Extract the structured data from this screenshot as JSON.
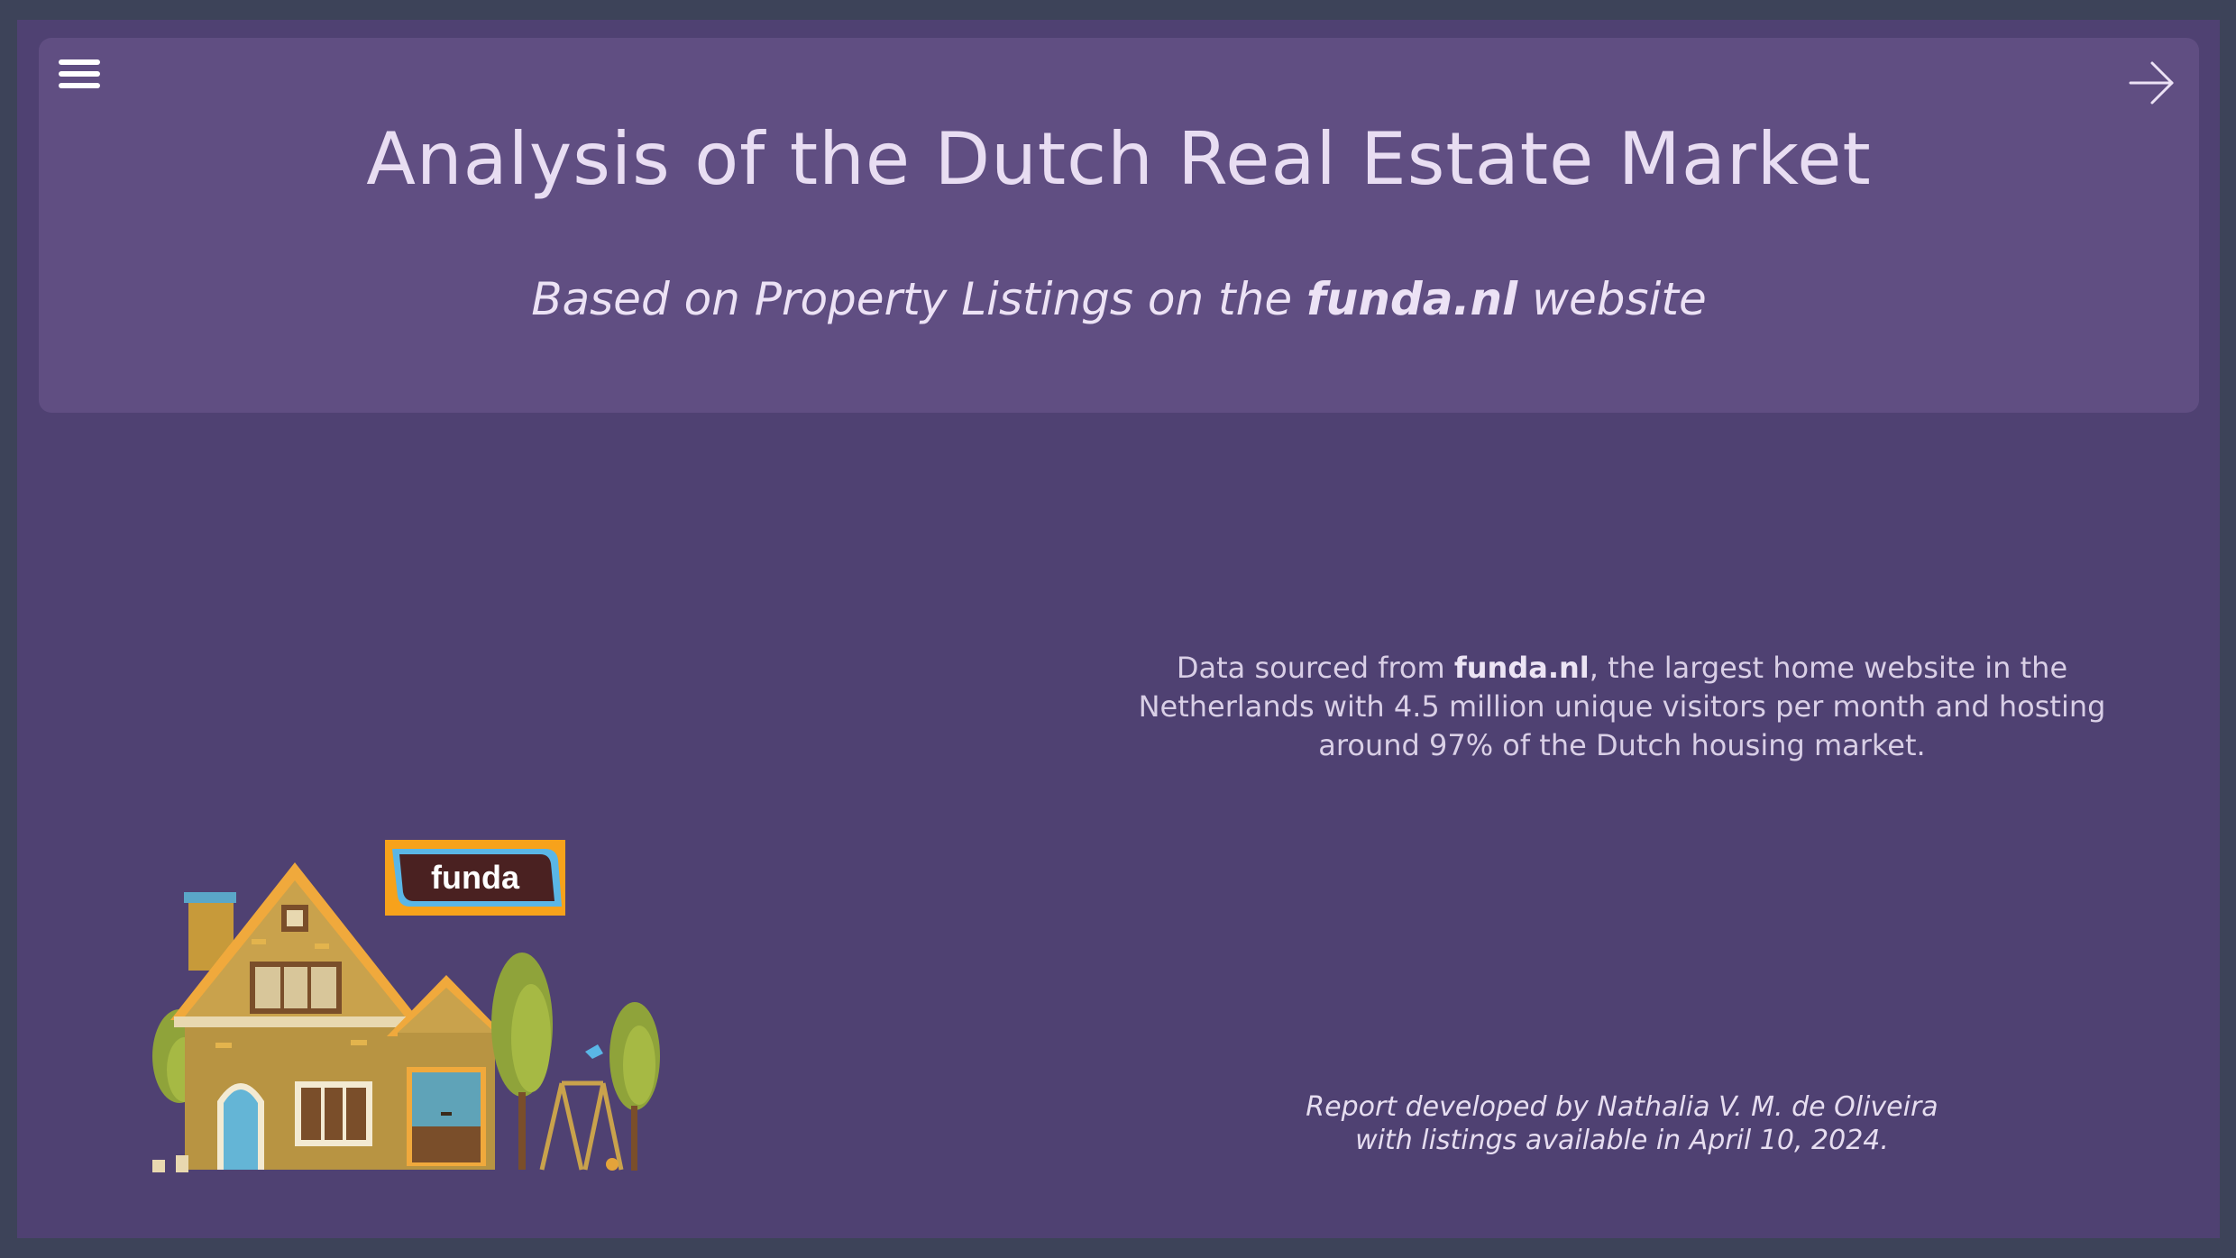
{
  "header": {
    "title": "Analysis of the Dutch Real Estate Market",
    "subtitle_prefix": "Based on Property Listings on the ",
    "subtitle_site": "funda.nl",
    "subtitle_suffix": " website"
  },
  "icons": {
    "menu": "hamburger-menu-icon",
    "next": "arrow-right-icon"
  },
  "description": {
    "prefix": "Data sourced from ",
    "site": "funda.nl",
    "suffix": ", the largest home website in the Netherlands with 4.5 million unique visitors per month and hosting around 97% of the Dutch housing market."
  },
  "credit": {
    "line1": "Report developed by Nathalia V. M. de Oliveira",
    "line2": "with listings available in April 10, 2024."
  },
  "logo": {
    "text": "funda"
  },
  "colors": {
    "page_bg": "#3d4359",
    "canvas_bg": "#4f4172",
    "header_bg": "#604e82",
    "text_light": "#e8ddf2",
    "logo_orange": "#f7a21b",
    "logo_blue": "#5ab6e6",
    "logo_dark": "#4a2121"
  }
}
